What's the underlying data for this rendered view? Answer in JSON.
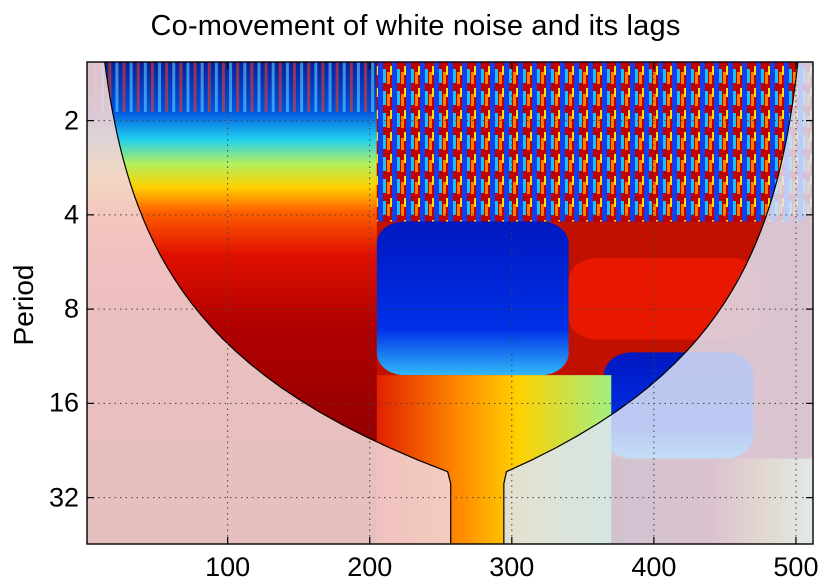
{
  "chart_data": {
    "type": "heatmap",
    "title": "Co-movement of white noise and its lags",
    "xlabel": "",
    "ylabel": "Period",
    "xlim": [
      1,
      512
    ],
    "ylim": [
      1.3,
      45
    ],
    "y_scale": "log2",
    "y_reversed": true,
    "x_ticks": [
      100,
      200,
      300,
      400,
      500
    ],
    "y_ticks": [
      2,
      4,
      8,
      16,
      32
    ],
    "grid": true,
    "colormap": "jet",
    "colors": {
      "cone_shade": "#f2d4d4",
      "high": "#800000",
      "low": "#000080",
      "grid": "#444444"
    },
    "regions": [
      {
        "x": [
          1,
          205
        ],
        "period": [
          1.3,
          1.9
        ],
        "level": "low"
      },
      {
        "x": [
          1,
          205
        ],
        "period": [
          1.9,
          2.8
        ],
        "level": "mid-low"
      },
      {
        "x": [
          1,
          205
        ],
        "period": [
          2.8,
          4.0
        ],
        "level": "mid-high"
      },
      {
        "x": [
          1,
          205
        ],
        "period": [
          4.0,
          8.0
        ],
        "level": "high"
      },
      {
        "x": [
          1,
          205
        ],
        "period": [
          8.0,
          45
        ],
        "level": "max"
      },
      {
        "x": [
          205,
          512
        ],
        "period": [
          1.3,
          4.2
        ],
        "level": "mixed"
      },
      {
        "x": [
          205,
          340
        ],
        "period": [
          4.2,
          13
        ],
        "level": "low"
      },
      {
        "x": [
          340,
          475
        ],
        "period": [
          5.5,
          10
        ],
        "level": "high"
      },
      {
        "x": [
          365,
          470
        ],
        "period": [
          11,
          24
        ],
        "level": "low"
      },
      {
        "x": [
          205,
          370
        ],
        "period": [
          13,
          45
        ],
        "level": "mid-high"
      },
      {
        "x": [
          370,
          512
        ],
        "period": [
          24,
          45
        ],
        "level": "mid"
      }
    ]
  }
}
